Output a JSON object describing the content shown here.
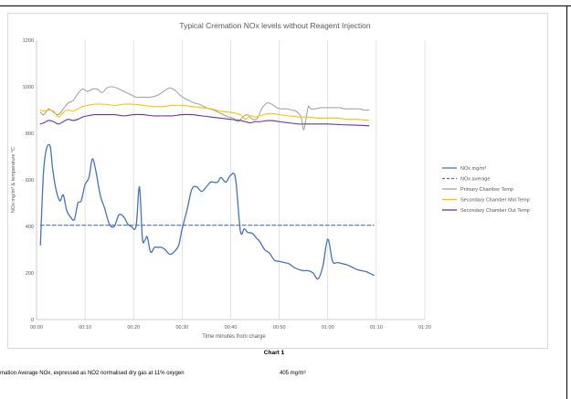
{
  "chart_data": {
    "type": "line",
    "title": "Typical Cremation NOx levels without Reagent Injection",
    "xlabel": "Time  minutes from charge",
    "ylabel": "NOx  mg/m³  & temperature  °C",
    "ylim": [
      0,
      1200
    ],
    "xlim_minutes": [
      0,
      80
    ],
    "yticks": [
      0,
      200,
      400,
      600,
      800,
      1000,
      1200
    ],
    "xticks": [
      "00:00",
      "00:10",
      "00:20",
      "00:30",
      "00:40",
      "00:50",
      "01:00",
      "01:10",
      "01:20"
    ],
    "xtick_minutes": [
      0,
      10,
      20,
      30,
      40,
      50,
      60,
      70,
      80
    ],
    "grid": "vertical",
    "legend_position": "right",
    "series": [
      {
        "name": "NOx mg/m³",
        "color": "#4472c4",
        "style": "solid",
        "x": [
          0.8,
          1.4,
          2.0,
          2.8,
          3.3,
          4.0,
          4.8,
          5.5,
          6.2,
          7.0,
          7.8,
          8.5,
          9.2,
          10.0,
          10.8,
          11.5,
          12.2,
          12.8,
          13.3,
          14.0,
          15.0,
          16.0,
          17.0,
          18.0,
          18.8,
          19.5,
          20.5,
          21.2,
          21.8,
          22.3,
          22.8,
          23.5,
          24.3,
          25.0,
          25.8,
          26.5,
          27.5,
          28.5,
          29.3,
          30.0,
          31.0,
          32.0,
          33.0,
          34.0,
          35.0,
          35.8,
          36.5,
          37.3,
          38.0,
          39.0,
          40.0,
          41.0,
          42.0,
          42.8,
          43.5,
          44.5,
          45.3,
          45.8,
          46.3,
          47.0,
          48.0,
          49.0,
          50.0,
          51.0,
          52.0,
          53.0,
          54.0,
          55.0,
          56.0,
          57.0,
          58.0,
          59.0,
          60.0,
          61.0,
          62.0,
          63.0,
          64.0,
          65.0,
          66.0,
          67.0,
          68.0,
          69.0,
          69.5
        ],
        "values": [
          320,
          620,
          730,
          745,
          650,
          560,
          510,
          535,
          470,
          440,
          430,
          500,
          510,
          580,
          610,
          690,
          640,
          570,
          520,
          480,
          410,
          400,
          450,
          440,
          410,
          400,
          400,
          570,
          350,
          340,
          355,
          290,
          310,
          310,
          310,
          300,
          280,
          295,
          320,
          390,
          470,
          560,
          570,
          550,
          570,
          590,
          590,
          590,
          610,
          590,
          620,
          605,
          380,
          390,
          375,
          370,
          350,
          340,
          325,
          300,
          285,
          255,
          250,
          245,
          240,
          225,
          215,
          210,
          210,
          200,
          175,
          230,
          345,
          250,
          245,
          240,
          235,
          225,
          215,
          210,
          205,
          195,
          190
        ]
      },
      {
        "name": "NOx average",
        "color": "#4472c4",
        "style": "dashed",
        "x": [
          0.8,
          69.5
        ],
        "values": [
          405,
          405
        ]
      },
      {
        "name": "Primary Chamber Temp",
        "color": "#a5a5a5",
        "style": "solid",
        "x": [
          0.8,
          1.5,
          2.5,
          3.5,
          4.5,
          5.5,
          6.5,
          7.5,
          8.5,
          9.5,
          10.5,
          11.5,
          12.5,
          13.5,
          14.5,
          15.5,
          16.5,
          17.5,
          18.5,
          19.5,
          20.5,
          21.5,
          22.5,
          23.5,
          24.5,
          25.5,
          26.5,
          27.5,
          28.5,
          29.5,
          30.5,
          31.5,
          32.5,
          33.5,
          34.5,
          35.5,
          36.5,
          37.5,
          38.5,
          39.5,
          40.5,
          41.5,
          42.5,
          43.5,
          44.5,
          45.5,
          46.5,
          47.5,
          48.5,
          49.5,
          50.5,
          51.5,
          52.5,
          53.5,
          54.5,
          55.0,
          55.5,
          56.0,
          56.5,
          57.5,
          58.5,
          59.5,
          60.5,
          61.5,
          62.5,
          63.5,
          64.5,
          65.5,
          66.5,
          67.5,
          68.5
        ],
        "values": [
          890,
          880,
          905,
          890,
          880,
          905,
          930,
          940,
          970,
          990,
          980,
          990,
          990,
          975,
          995,
          1000,
          995,
          985,
          975,
          965,
          955,
          955,
          955,
          955,
          960,
          970,
          985,
          995,
          985,
          965,
          950,
          940,
          930,
          925,
          915,
          905,
          900,
          890,
          880,
          870,
          865,
          850,
          870,
          880,
          860,
          865,
          910,
          930,
          925,
          910,
          905,
          905,
          900,
          895,
          870,
          815,
          860,
          915,
          905,
          905,
          910,
          910,
          910,
          910,
          910,
          905,
          905,
          905,
          905,
          900,
          900
        ]
      },
      {
        "name": "Secondary Chamber Mid Temp",
        "color": "#ffc000",
        "style": "solid",
        "x": [
          0.8,
          1.5,
          2.5,
          3.5,
          4.5,
          5.5,
          6.5,
          7.5,
          8.5,
          9.5,
          10.5,
          12.0,
          14.0,
          16.0,
          18.0,
          20.0,
          22.0,
          24.0,
          26.0,
          28.0,
          30.0,
          32.0,
          34.0,
          36.0,
          38.0,
          40.0,
          42.0,
          43.0,
          44.0,
          45.0,
          46.0,
          48.0,
          50.0,
          52.0,
          54.0,
          56.0,
          58.0,
          60.0,
          62.0,
          64.0,
          66.0,
          68.5
        ],
        "values": [
          900,
          895,
          900,
          895,
          870,
          890,
          900,
          895,
          905,
          915,
          920,
          925,
          925,
          920,
          925,
          925,
          920,
          915,
          915,
          920,
          920,
          915,
          910,
          905,
          895,
          890,
          880,
          860,
          875,
          870,
          875,
          885,
          880,
          875,
          870,
          870,
          865,
          865,
          865,
          860,
          860,
          855
        ]
      },
      {
        "name": "Secondary Chamber Out Temp",
        "color": "#7030a0",
        "style": "solid",
        "x": [
          0.8,
          1.5,
          2.5,
          3.5,
          4.5,
          5.5,
          6.5,
          7.5,
          8.5,
          9.5,
          10.5,
          12.0,
          14.0,
          16.0,
          18.0,
          20.0,
          22.0,
          24.0,
          26.0,
          28.0,
          30.0,
          32.0,
          34.0,
          36.0,
          38.0,
          40.0,
          42.0,
          43.0,
          44.0,
          45.0,
          46.0,
          48.0,
          50.0,
          52.0,
          54.0,
          56.0,
          58.0,
          60.0,
          62.0,
          64.0,
          66.0,
          68.5
        ],
        "values": [
          840,
          845,
          855,
          850,
          840,
          850,
          860,
          855,
          860,
          870,
          875,
          880,
          880,
          880,
          875,
          880,
          880,
          875,
          875,
          875,
          880,
          880,
          875,
          870,
          865,
          860,
          855,
          850,
          845,
          850,
          850,
          855,
          850,
          845,
          840,
          840,
          840,
          840,
          838,
          836,
          835,
          832
        ]
      }
    ]
  },
  "caption": "Chart 1",
  "note": {
    "label": "mation Average NOx, expressed as NO2 normalised dry gas at 11% oxygen",
    "value": "405  mg/m³"
  }
}
